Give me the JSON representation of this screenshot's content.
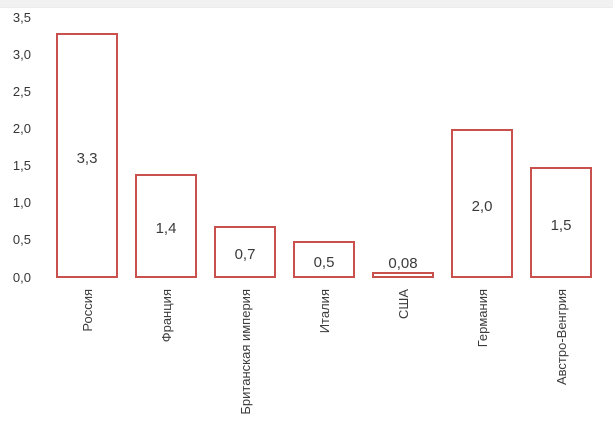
{
  "window": {
    "top_strip_color": "#f1f1f2",
    "background_color": "#ffffff"
  },
  "chart_data": {
    "type": "bar",
    "title": "",
    "xlabel": "",
    "ylabel": "",
    "categories": [
      "Россия",
      "Франция",
      "Британская империя",
      "Италия",
      "США",
      "Германия",
      "Австро-Венгрия"
    ],
    "values": [
      3.3,
      1.4,
      0.7,
      0.5,
      0.08,
      2.0,
      1.5
    ],
    "value_labels": [
      "3,3",
      "1,4",
      "0,7",
      "0,5",
      "0,08",
      "2,0",
      "1,5"
    ],
    "y_ticks": [
      "0,0",
      "0,5",
      "1,0",
      "1,5",
      "2,0",
      "2,5",
      "3,0",
      "3,5"
    ],
    "y_tick_values": [
      0,
      0.5,
      1,
      1.5,
      2,
      2.5,
      3,
      3.5
    ],
    "ylim": [
      0,
      3.5
    ],
    "grid": false,
    "legend": false,
    "bar_fill_color": "#ffffff",
    "bar_border_color": "#c8504d",
    "text_color": "#3b3b3b",
    "category_labels_rotated_degrees": -90
  }
}
